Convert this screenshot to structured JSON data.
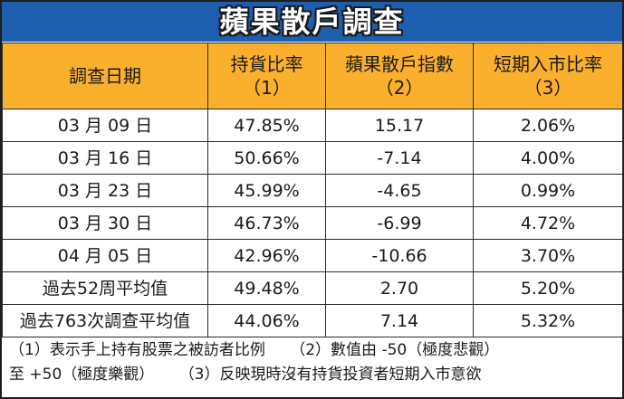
{
  "title": "蘋果散戶調查",
  "headers": [
    {
      "line1": "調查日期",
      "line2": ""
    },
    {
      "line1": "持貨比率",
      "line2": "（1）"
    },
    {
      "line1": "蘋果散戶指數",
      "line2": "（2）"
    },
    {
      "line1": "短期入市比率",
      "line2": "（3）"
    }
  ],
  "rows": [
    [
      "03 月 09 日",
      "47.85%",
      "15.17",
      "2.06%"
    ],
    [
      "03 月 16 日",
      "50.66%",
      "-7.14",
      "4.00%"
    ],
    [
      "03 月 23 日",
      "45.99%",
      "-4.65",
      "0.99%"
    ],
    [
      "03 月 30 日",
      "46.73%",
      "-6.99",
      "4.72%"
    ],
    [
      "04 月 05 日",
      "42.96%",
      "-10.66",
      "3.70%"
    ],
    [
      "過去52周平均值",
      "49.48%",
      "2.70",
      "5.20%"
    ],
    [
      "過去763次調查平均值",
      "44.06%",
      "7.14",
      "5.32%"
    ]
  ],
  "notes": {
    "n1": "（1）表示手上持有股票之被訪者比例",
    "n2": "（2）數值由 -50（極度悲觀）",
    "n2b": "至 +50（極度樂觀）",
    "n3": "（3）反映現時沒有持貨投資者短期入市意欲"
  },
  "colors": {
    "title_bg": "#1d5fae",
    "header_bg": "#fbb02d"
  }
}
